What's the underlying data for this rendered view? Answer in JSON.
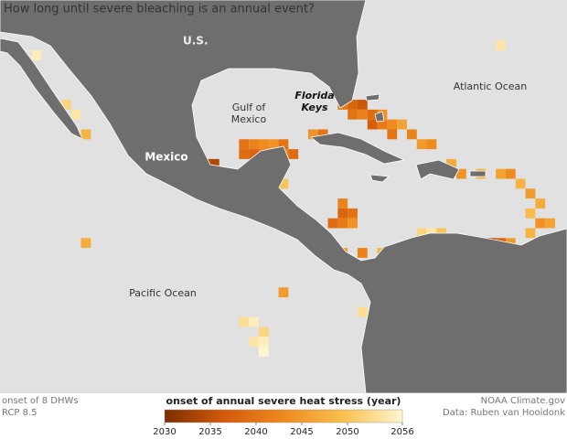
{
  "title": "How long until severe bleaching is an annual event?",
  "labels": {
    "us": "U.S.",
    "gulf": [
      "Gulf of",
      "Mexico"
    ],
    "keys": [
      "Florida",
      "Keys"
    ],
    "atlantic": "Atlantic Ocean",
    "mexico": "Mexico",
    "pacific": "Pacific Ocean"
  },
  "notes": [
    "onset of 8 DHWs",
    "RCP 8.5"
  ],
  "credits": [
    "NOAA Climate.gov",
    "Data: Ruben van Hooidonk"
  ],
  "legend": {
    "title": "onset of annual severe heat stress (year)",
    "colorlim": [
      2030,
      2056
    ],
    "ticks": [
      2030,
      2035,
      2040,
      2045,
      2050,
      2056
    ],
    "colors": [
      "#7a2e00",
      "#d45a0a",
      "#ee8a1e",
      "#f8c04e",
      "#fff6cf"
    ]
  },
  "cells": [
    {
      "lon": -65,
      "lat": 31,
      "year": 2054
    },
    {
      "lon": -112,
      "lat": 30,
      "year": 2055
    },
    {
      "lon": -113,
      "lat": 29,
      "year": 2050
    },
    {
      "lon": -109,
      "lat": 25,
      "year": 2052
    },
    {
      "lon": -108,
      "lat": 24,
      "year": 2054
    },
    {
      "lon": -107,
      "lat": 22,
      "year": 2048
    },
    {
      "lon": -107,
      "lat": 11,
      "year": 2047
    },
    {
      "lon": -95,
      "lat": 19,
      "year": 2033
    },
    {
      "lon": -94,
      "lat": 19,
      "year": 2034
    },
    {
      "lon": -91,
      "lat": 21,
      "year": 2040
    },
    {
      "lon": -91,
      "lat": 20,
      "year": 2039
    },
    {
      "lon": -90,
      "lat": 21,
      "year": 2042
    },
    {
      "lon": -90,
      "lat": 20,
      "year": 2038
    },
    {
      "lon": -89,
      "lat": 21,
      "year": 2043
    },
    {
      "lon": -89,
      "lat": 20,
      "year": 2041
    },
    {
      "lon": -88,
      "lat": 21,
      "year": 2044
    },
    {
      "lon": -87,
      "lat": 21,
      "year": 2040
    },
    {
      "lon": -87,
      "lat": 20,
      "year": 2042
    },
    {
      "lon": -86,
      "lat": 20,
      "year": 2039
    },
    {
      "lon": -87,
      "lat": 17,
      "year": 2050
    },
    {
      "lon": -88,
      "lat": 18,
      "year": 2046
    },
    {
      "lon": -81,
      "lat": 25,
      "year": 2041
    },
    {
      "lon": -80,
      "lat": 25,
      "year": 2038
    },
    {
      "lon": -79,
      "lat": 25,
      "year": 2036
    },
    {
      "lon": -80,
      "lat": 24,
      "year": 2040
    },
    {
      "lon": -79,
      "lat": 24,
      "year": 2042
    },
    {
      "lon": -78,
      "lat": 24,
      "year": 2039
    },
    {
      "lon": -77,
      "lat": 24,
      "year": 2044
    },
    {
      "lon": -78,
      "lat": 23,
      "year": 2037
    },
    {
      "lon": -77,
      "lat": 23,
      "year": 2041
    },
    {
      "lon": -76,
      "lat": 23,
      "year": 2043
    },
    {
      "lon": -75,
      "lat": 23,
      "year": 2046
    },
    {
      "lon": -76,
      "lat": 22,
      "year": 2040
    },
    {
      "lon": -74,
      "lat": 22,
      "year": 2042
    },
    {
      "lon": -73,
      "lat": 21,
      "year": 2045
    },
    {
      "lon": -72,
      "lat": 21,
      "year": 2043
    },
    {
      "lon": -84,
      "lat": 22,
      "year": 2044
    },
    {
      "lon": -83,
      "lat": 22,
      "year": 2040
    },
    {
      "lon": -70,
      "lat": 19,
      "year": 2047
    },
    {
      "lon": -69,
      "lat": 18,
      "year": 2044
    },
    {
      "lon": -67,
      "lat": 18,
      "year": 2048
    },
    {
      "lon": -65,
      "lat": 18,
      "year": 2046
    },
    {
      "lon": -64,
      "lat": 18,
      "year": 2043
    },
    {
      "lon": -63,
      "lat": 17,
      "year": 2048
    },
    {
      "lon": -62,
      "lat": 16,
      "year": 2045
    },
    {
      "lon": -61,
      "lat": 15,
      "year": 2047
    },
    {
      "lon": -62,
      "lat": 14,
      "year": 2049
    },
    {
      "lon": -61,
      "lat": 13,
      "year": 2044
    },
    {
      "lon": -60,
      "lat": 13,
      "year": 2046
    },
    {
      "lon": -62,
      "lat": 12,
      "year": 2048
    },
    {
      "lon": -81,
      "lat": 15,
      "year": 2042
    },
    {
      "lon": -81,
      "lat": 14,
      "year": 2038
    },
    {
      "lon": -80,
      "lat": 14,
      "year": 2040
    },
    {
      "lon": -82,
      "lat": 13,
      "year": 2039
    },
    {
      "lon": -81,
      "lat": 13,
      "year": 2041
    },
    {
      "lon": -80,
      "lat": 13,
      "year": 2044
    },
    {
      "lon": -84,
      "lat": 11,
      "year": 2046
    },
    {
      "lon": -83,
      "lat": 10,
      "year": 2043
    },
    {
      "lon": -81,
      "lat": 10,
      "year": 2045
    },
    {
      "lon": -79,
      "lat": 10,
      "year": 2042
    },
    {
      "lon": -77,
      "lat": 10,
      "year": 2048
    },
    {
      "lon": -76,
      "lat": 10,
      "year": 2050
    },
    {
      "lon": -73,
      "lat": 12,
      "year": 2052
    },
    {
      "lon": -72,
      "lat": 12,
      "year": 2054
    },
    {
      "lon": -71,
      "lat": 12,
      "year": 2050
    },
    {
      "lon": -70,
      "lat": 11,
      "year": 2047
    },
    {
      "lon": -68,
      "lat": 11,
      "year": 2044
    },
    {
      "lon": -66,
      "lat": 11,
      "year": 2034
    },
    {
      "lon": -65,
      "lat": 11,
      "year": 2038
    },
    {
      "lon": -64,
      "lat": 11,
      "year": 2045
    },
    {
      "lon": -87,
      "lat": 6,
      "year": 2045
    },
    {
      "lon": -78,
      "lat": 7,
      "year": 2050
    },
    {
      "lon": -79,
      "lat": 4,
      "year": 2053
    },
    {
      "lon": -91,
      "lat": 3,
      "year": 2053
    },
    {
      "lon": -90,
      "lat": 3,
      "year": 2055
    },
    {
      "lon": -89,
      "lat": 2,
      "year": 2052
    },
    {
      "lon": -90,
      "lat": 1,
      "year": 2054
    },
    {
      "lon": -89,
      "lat": 1,
      "year": 2055
    },
    {
      "lon": -89,
      "lat": 0,
      "year": 2056
    }
  ]
}
